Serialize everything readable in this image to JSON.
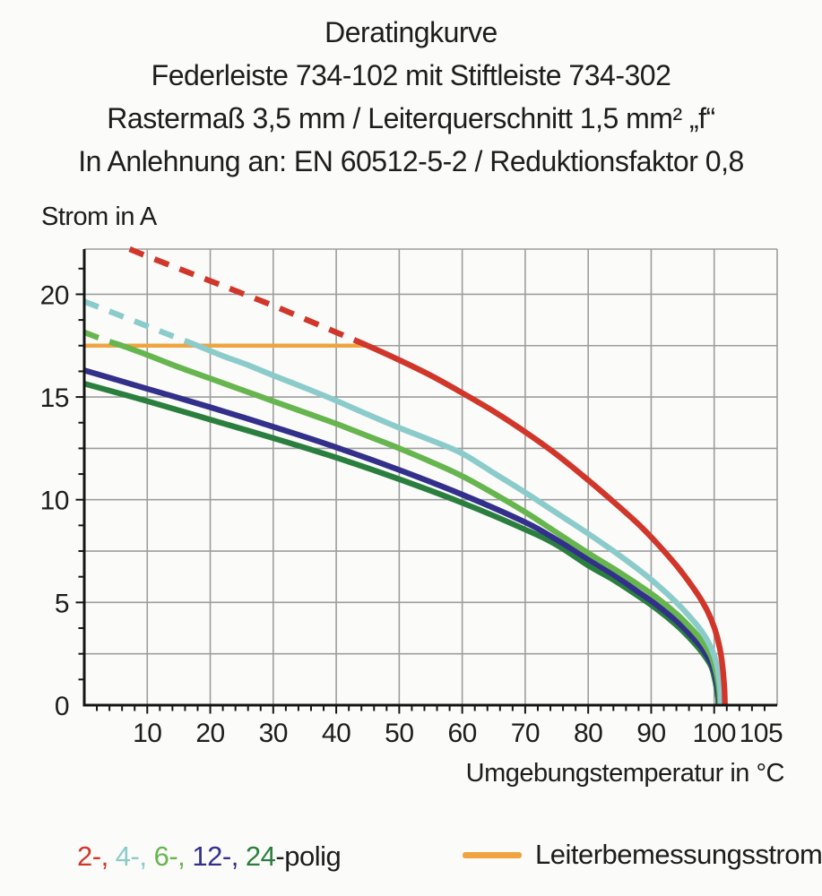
{
  "title": {
    "line1": "Deratingkurve",
    "line2": "Federleiste 734-102 mit Stiftleiste 734-302",
    "line3": "Rastermaß 3,5 mm / Leiterquerschnitt 1,5 mm² „f“",
    "line4": "In Anlehnung an: EN 60512-5-2 / Reduktionsfaktor 0,8"
  },
  "legend": {
    "pole_items": [
      {
        "name": "2",
        "text": "2-, ",
        "color": "#D0362A"
      },
      {
        "name": "4",
        "text": "4-, ",
        "color": "#8BCCCB"
      },
      {
        "name": "6",
        "text": "6-, ",
        "color": "#66B54E"
      },
      {
        "name": "12",
        "text": "12-, ",
        "color": "#33308C"
      },
      {
        "name": "24",
        "text": "24",
        "color": "#2B7F3E"
      }
    ],
    "pole_suffix": "-polig",
    "rated_current_label": "Leiterbemessungsstrom"
  },
  "chart_data": {
    "type": "line",
    "title": "Deratingkurve",
    "xlabel": "Umgebungstemperatur in °C",
    "ylabel": "Strom in A",
    "xlim": [
      0,
      110
    ],
    "ylim": [
      0,
      22.2
    ],
    "x_tick_labels": [
      10,
      20,
      30,
      40,
      50,
      60,
      70,
      80,
      90,
      100,
      105
    ],
    "y_tick_labels": [
      0,
      5,
      10,
      15,
      20
    ],
    "x_minor_tick_step": 2,
    "y_minor_tick_step": 1.25,
    "grid": {
      "on": true,
      "x_step": 10,
      "y_step": 2.5
    },
    "colors": {
      "grid": "#9D9D9D",
      "axis": "#151515",
      "text": "#1D1D1B"
    },
    "rated_current_line": {
      "label": "Leiterbemessungsstrom",
      "value_A": 17.5,
      "x_from": 0,
      "x_to": 45,
      "color": "#F0A440"
    },
    "series_note": "curves are dashed above the rated conductor current (17.5 A) and solid below; all curves fall to 0 A at ~101 °C",
    "series": [
      {
        "name": "2-polig",
        "color": "#D0362A",
        "solid_from_T": 45,
        "points": [
          [
            7.2,
            22.2
          ],
          [
            10,
            21.85
          ],
          [
            15,
            21.25
          ],
          [
            20,
            20.65
          ],
          [
            25,
            20.05
          ],
          [
            30,
            19.45
          ],
          [
            35,
            18.8
          ],
          [
            40,
            18.15
          ],
          [
            45,
            17.5
          ],
          [
            50,
            16.8
          ],
          [
            55,
            16.05
          ],
          [
            60,
            15.2
          ],
          [
            65,
            14.3
          ],
          [
            70,
            13.3
          ],
          [
            75,
            12.2
          ],
          [
            80,
            10.95
          ],
          [
            84,
            9.9
          ],
          [
            88,
            8.8
          ],
          [
            91,
            7.85
          ],
          [
            94,
            6.8
          ],
          [
            96,
            6.0
          ],
          [
            98,
            5.1
          ],
          [
            99.5,
            4.2
          ],
          [
            100.5,
            3.3
          ],
          [
            101.2,
            2.2
          ],
          [
            101.6,
            0.9
          ],
          [
            101.7,
            0
          ]
        ]
      },
      {
        "name": "4-polig",
        "color": "#8BCCCB",
        "solid_from_T": 18,
        "points": [
          [
            0,
            19.65
          ],
          [
            5,
            19.05
          ],
          [
            10,
            18.45
          ],
          [
            14,
            17.97
          ],
          [
            18,
            17.5
          ],
          [
            22,
            17.0
          ],
          [
            26,
            16.55
          ],
          [
            30,
            16.05
          ],
          [
            35,
            15.45
          ],
          [
            40,
            14.82
          ],
          [
            45,
            14.15
          ],
          [
            50,
            13.5
          ],
          [
            55,
            12.9
          ],
          [
            60,
            12.25
          ],
          [
            65,
            11.3
          ],
          [
            70,
            10.35
          ],
          [
            75,
            9.35
          ],
          [
            80,
            8.35
          ],
          [
            84,
            7.5
          ],
          [
            88,
            6.6
          ],
          [
            91,
            5.85
          ],
          [
            94,
            5.0
          ],
          [
            96,
            4.35
          ],
          [
            98,
            3.6
          ],
          [
            99.5,
            2.8
          ],
          [
            100.4,
            2.0
          ],
          [
            100.9,
            1.0
          ],
          [
            101.1,
            0
          ]
        ]
      },
      {
        "name": "6-polig",
        "color": "#66B54E",
        "solid_from_T": 6,
        "points": [
          [
            0,
            18.15
          ],
          [
            3,
            17.8
          ],
          [
            6,
            17.5
          ],
          [
            10,
            17.05
          ],
          [
            15,
            16.45
          ],
          [
            20,
            15.9
          ],
          [
            25,
            15.35
          ],
          [
            30,
            14.8
          ],
          [
            35,
            14.25
          ],
          [
            40,
            13.7
          ],
          [
            45,
            13.1
          ],
          [
            50,
            12.5
          ],
          [
            55,
            11.85
          ],
          [
            60,
            11.15
          ],
          [
            65,
            10.3
          ],
          [
            70,
            9.4
          ],
          [
            75,
            8.4
          ],
          [
            80,
            7.4
          ],
          [
            84,
            6.65
          ],
          [
            88,
            5.85
          ],
          [
            91,
            5.2
          ],
          [
            94,
            4.45
          ],
          [
            96,
            3.85
          ],
          [
            98,
            3.15
          ],
          [
            99.5,
            2.4
          ],
          [
            100.3,
            1.6
          ],
          [
            100.8,
            0.7
          ],
          [
            100.9,
            0
          ]
        ]
      },
      {
        "name": "12-polig",
        "color": "#33308C",
        "solid_from_T": 0,
        "points": [
          [
            0,
            16.3
          ],
          [
            10,
            15.4
          ],
          [
            20,
            14.5
          ],
          [
            30,
            13.55
          ],
          [
            40,
            12.55
          ],
          [
            50,
            11.45
          ],
          [
            60,
            10.25
          ],
          [
            70,
            8.9
          ],
          [
            75,
            8.05
          ],
          [
            80,
            7.1
          ],
          [
            84,
            6.35
          ],
          [
            88,
            5.5
          ],
          [
            91,
            4.85
          ],
          [
            94,
            4.1
          ],
          [
            96,
            3.5
          ],
          [
            98,
            2.8
          ],
          [
            99.5,
            2.05
          ],
          [
            100.2,
            1.4
          ],
          [
            100.7,
            0.5
          ],
          [
            100.75,
            0
          ]
        ]
      },
      {
        "name": "24-polig",
        "color": "#2B7F3E",
        "solid_from_T": 0,
        "points": [
          [
            0,
            15.65
          ],
          [
            10,
            14.8
          ],
          [
            20,
            13.9
          ],
          [
            30,
            13.0
          ],
          [
            40,
            12.05
          ],
          [
            50,
            11.0
          ],
          [
            60,
            9.85
          ],
          [
            70,
            8.55
          ],
          [
            75,
            7.8
          ],
          [
            80,
            6.8
          ],
          [
            84,
            6.1
          ],
          [
            88,
            5.3
          ],
          [
            91,
            4.65
          ],
          [
            94,
            3.9
          ],
          [
            96,
            3.3
          ],
          [
            98,
            2.6
          ],
          [
            99.5,
            1.9
          ],
          [
            100.1,
            1.25
          ],
          [
            100.6,
            0.4
          ],
          [
            100.65,
            0
          ]
        ]
      }
    ]
  }
}
